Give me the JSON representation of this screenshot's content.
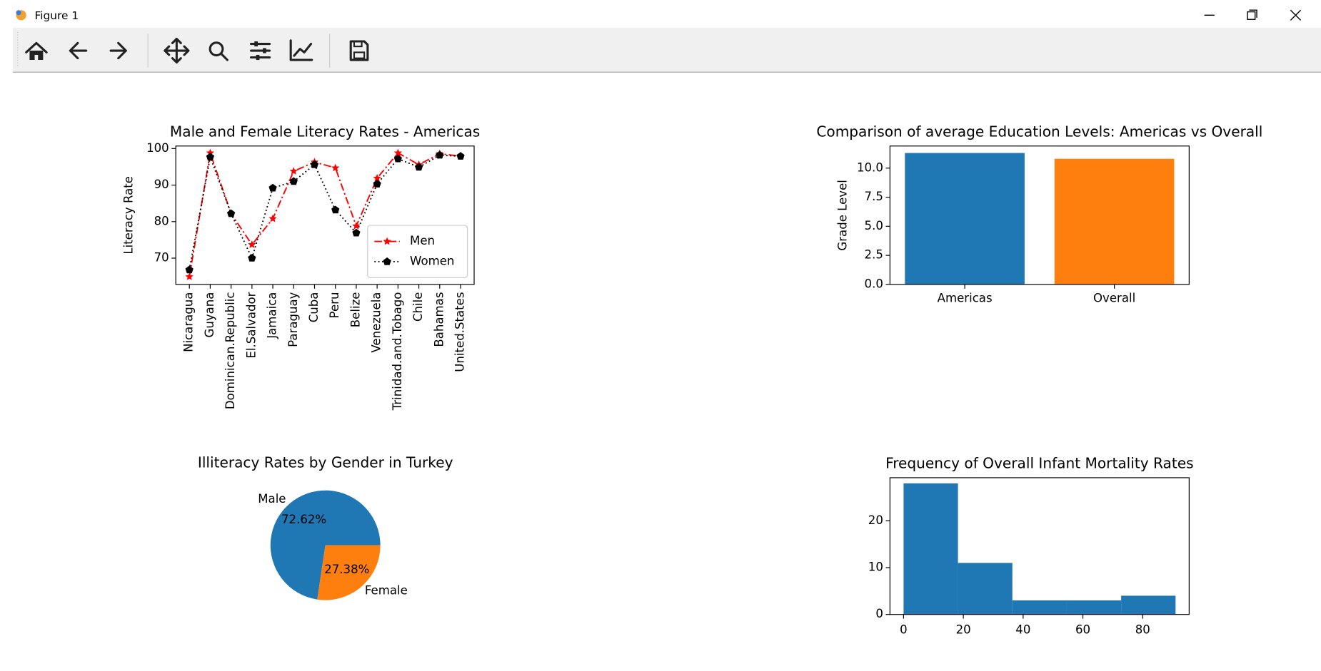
{
  "window": {
    "title": "Figure 1"
  },
  "chart_data": [
    {
      "type": "line",
      "title": "Male and Female Literacy Rates - Americas",
      "ylabel": "Literacy Rate",
      "categories": [
        "Nicaragua",
        "Guyana",
        "Dominican.Republic",
        "El.Salvador",
        "Jamaica",
        "Paraguay",
        "Cuba",
        "Peru",
        "Belize",
        "Venezuela",
        "Trinidad.and.Tobago",
        "Chile",
        "Bahamas",
        "United.States"
      ],
      "series": [
        {
          "name": "Men",
          "color": "#ff0000",
          "linestyle": "dashdot",
          "marker": "star",
          "values": [
            64.9,
            98.8,
            82.2,
            73.7,
            80.8,
            93.8,
            96.3,
            94.7,
            78.8,
            91.9,
            98.8,
            95.6,
            98.6,
            97.9
          ]
        },
        {
          "name": "Women",
          "color": "#000000",
          "linestyle": "dotted",
          "marker": "pentagon",
          "values": [
            66.8,
            97.7,
            82.2,
            70.0,
            89.2,
            91.0,
            95.6,
            83.2,
            76.9,
            90.3,
            97.2,
            94.9,
            98.2,
            97.9
          ]
        }
      ],
      "xlim": [
        -0.65,
        13.65
      ],
      "ylim": [
        62.8,
        100.7
      ],
      "yticks": [
        70,
        80,
        90,
        100
      ],
      "legend": "lower right"
    },
    {
      "type": "bar",
      "title": "Comparison of average Education Levels: Americas vs Overall",
      "ylabel": "Grade Level",
      "categories": [
        "Americas",
        "Overall"
      ],
      "values": [
        11.3,
        10.8
      ],
      "colors": [
        "#1f77b4",
        "#ff7f0e"
      ],
      "xlim": [
        -0.5,
        1.5
      ],
      "ylim": [
        0,
        11.9
      ],
      "yticks": [
        {
          "value": 0,
          "label": "0.0"
        },
        {
          "value": 2.5,
          "label": "2.5"
        },
        {
          "value": 5,
          "label": "5.0"
        },
        {
          "value": 7.5,
          "label": "7.5"
        },
        {
          "value": 10,
          "label": "10.0"
        }
      ]
    },
    {
      "type": "pie",
      "title": "Illiteracy Rates by Gender in Turkey",
      "categories": [
        "Male",
        "Female"
      ],
      "values": [
        72.62,
        27.38
      ],
      "value_labels": [
        "72.62%",
        "27.38%"
      ],
      "colors": [
        "#1f77b4",
        "#ff7f0e"
      ]
    },
    {
      "type": "histogram",
      "title": "Frequency of Overall Infant Mortality Rates",
      "bins": [
        0,
        18.2,
        36.4,
        54.6,
        72.8,
        91
      ],
      "values": [
        28,
        11,
        3,
        3,
        4
      ],
      "color": "#1f77b4",
      "xlim": [
        -4.55,
        95.55
      ],
      "ylim": [
        0,
        29.2
      ],
      "xticks": [
        0,
        20,
        40,
        60,
        80
      ],
      "yticks": [
        0,
        10,
        20
      ]
    }
  ]
}
